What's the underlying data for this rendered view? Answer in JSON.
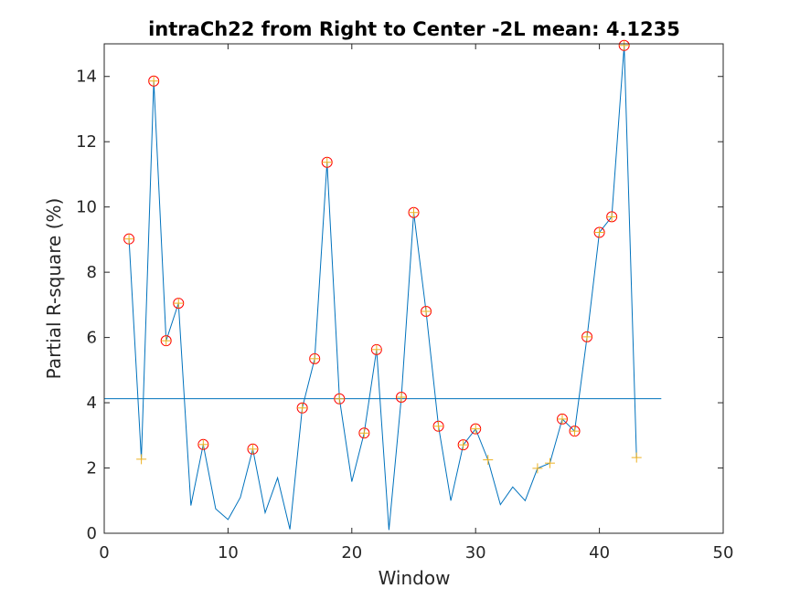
{
  "chart_data": {
    "type": "line",
    "title": "intraCh22 from Right to Center -2L mean: 4.1235",
    "xlabel": "Window",
    "ylabel": "Partial R-square (%)",
    "xlim": [
      0,
      50
    ],
    "ylim": [
      0,
      15
    ],
    "xticks": [
      0,
      10,
      20,
      30,
      40,
      50
    ],
    "yticks": [
      0,
      2,
      4,
      6,
      8,
      10,
      12,
      14
    ],
    "grid": false,
    "mean": 4.1235,
    "mean_line_x": [
      0,
      45
    ],
    "series": [
      {
        "x": [
          2,
          3,
          4,
          5,
          6,
          7,
          8,
          9,
          10,
          11,
          12,
          13,
          14,
          15,
          16,
          17,
          18,
          19,
          20,
          21,
          22,
          23,
          24,
          25,
          26,
          27,
          28,
          29,
          30,
          31,
          32,
          33,
          34,
          35,
          36,
          37,
          38,
          39,
          40,
          41,
          42,
          43
        ],
        "values": [
          9.02,
          2.27,
          13.86,
          5.9,
          7.05,
          0.85,
          2.72,
          0.75,
          0.42,
          1.1,
          2.58,
          0.63,
          1.7,
          0.12,
          3.84,
          5.35,
          11.37,
          4.12,
          1.58,
          3.07,
          5.63,
          0.1,
          4.17,
          9.83,
          6.8,
          3.28,
          1.0,
          2.71,
          3.2,
          2.25,
          0.88,
          1.42,
          1.0,
          1.99,
          2.15,
          3.5,
          3.13,
          6.02,
          9.22,
          9.7,
          14.95,
          2.32
        ]
      }
    ],
    "circled_x": [
      2,
      4,
      5,
      6,
      8,
      12,
      16,
      17,
      18,
      19,
      21,
      22,
      24,
      25,
      26,
      27,
      29,
      30,
      37,
      38,
      39,
      40,
      41,
      42
    ],
    "plus_x": [
      2,
      3,
      4,
      5,
      6,
      8,
      12,
      16,
      17,
      18,
      19,
      21,
      22,
      24,
      25,
      26,
      27,
      29,
      30,
      31,
      35,
      36,
      37,
      38,
      39,
      40,
      41,
      42,
      43
    ],
    "colors": {
      "line": "#0072BD",
      "mean_line": "#0072BD",
      "circle": "#FF0000",
      "plus": "#EDB120",
      "axes": "#262626"
    }
  }
}
